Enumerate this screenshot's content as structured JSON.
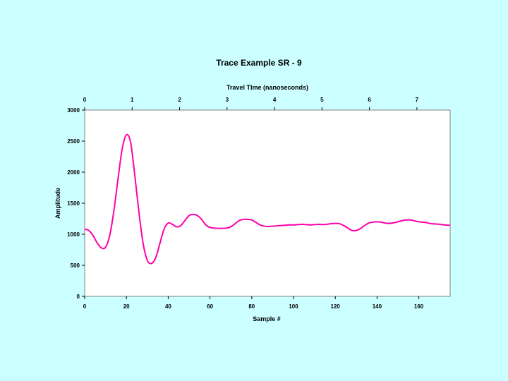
{
  "chart_data": {
    "type": "line",
    "title": "Trace Example SR - 9",
    "xlabel": "Sample #",
    "x2label": "Travel TIme (nanoseconds)",
    "ylabel": "Amplitude",
    "xlim": [
      0,
      175
    ],
    "ylim": [
      0,
      3000
    ],
    "x2lim": [
      0,
      7.7
    ],
    "x_ticks": [
      0,
      20,
      40,
      60,
      80,
      100,
      120,
      140,
      160
    ],
    "x2_ticks": [
      0,
      1,
      2,
      3,
      4,
      5,
      6,
      7
    ],
    "y_ticks": [
      0,
      500,
      1000,
      1500,
      2000,
      2500,
      3000
    ],
    "grid": false,
    "legend": "none",
    "series": [
      {
        "color": "#ff00aa",
        "x": [
          0,
          2,
          4,
          6,
          8,
          10,
          12,
          14,
          16,
          18,
          20,
          22,
          24,
          26,
          28,
          30,
          32,
          34,
          36,
          38,
          40,
          42,
          44,
          46,
          48,
          50,
          52,
          54,
          56,
          58,
          60,
          62,
          64,
          66,
          68,
          70,
          72,
          74,
          76,
          78,
          80,
          82,
          84,
          86,
          88,
          90,
          92,
          94,
          96,
          98,
          100,
          102,
          104,
          106,
          108,
          110,
          112,
          114,
          116,
          118,
          120,
          122,
          124,
          126,
          128,
          130,
          132,
          134,
          136,
          138,
          140,
          142,
          144,
          146,
          148,
          150,
          152,
          154,
          156,
          158,
          160,
          162,
          164,
          166,
          168,
          170,
          172,
          174,
          175
        ],
        "y": [
          1080,
          1060,
          980,
          860,
          780,
          790,
          980,
          1380,
          1900,
          2380,
          2600,
          2480,
          1950,
          1350,
          850,
          580,
          530,
          620,
          850,
          1080,
          1180,
          1160,
          1120,
          1140,
          1220,
          1300,
          1320,
          1300,
          1240,
          1150,
          1110,
          1100,
          1095,
          1095,
          1100,
          1120,
          1170,
          1220,
          1240,
          1240,
          1230,
          1190,
          1150,
          1130,
          1125,
          1130,
          1135,
          1140,
          1145,
          1150,
          1150,
          1155,
          1160,
          1155,
          1150,
          1155,
          1160,
          1155,
          1160,
          1170,
          1175,
          1170,
          1140,
          1100,
          1060,
          1060,
          1090,
          1140,
          1180,
          1195,
          1200,
          1195,
          1180,
          1175,
          1185,
          1200,
          1220,
          1230,
          1230,
          1215,
          1200,
          1195,
          1185,
          1170,
          1165,
          1160,
          1150,
          1145,
          1145
        ]
      }
    ]
  }
}
